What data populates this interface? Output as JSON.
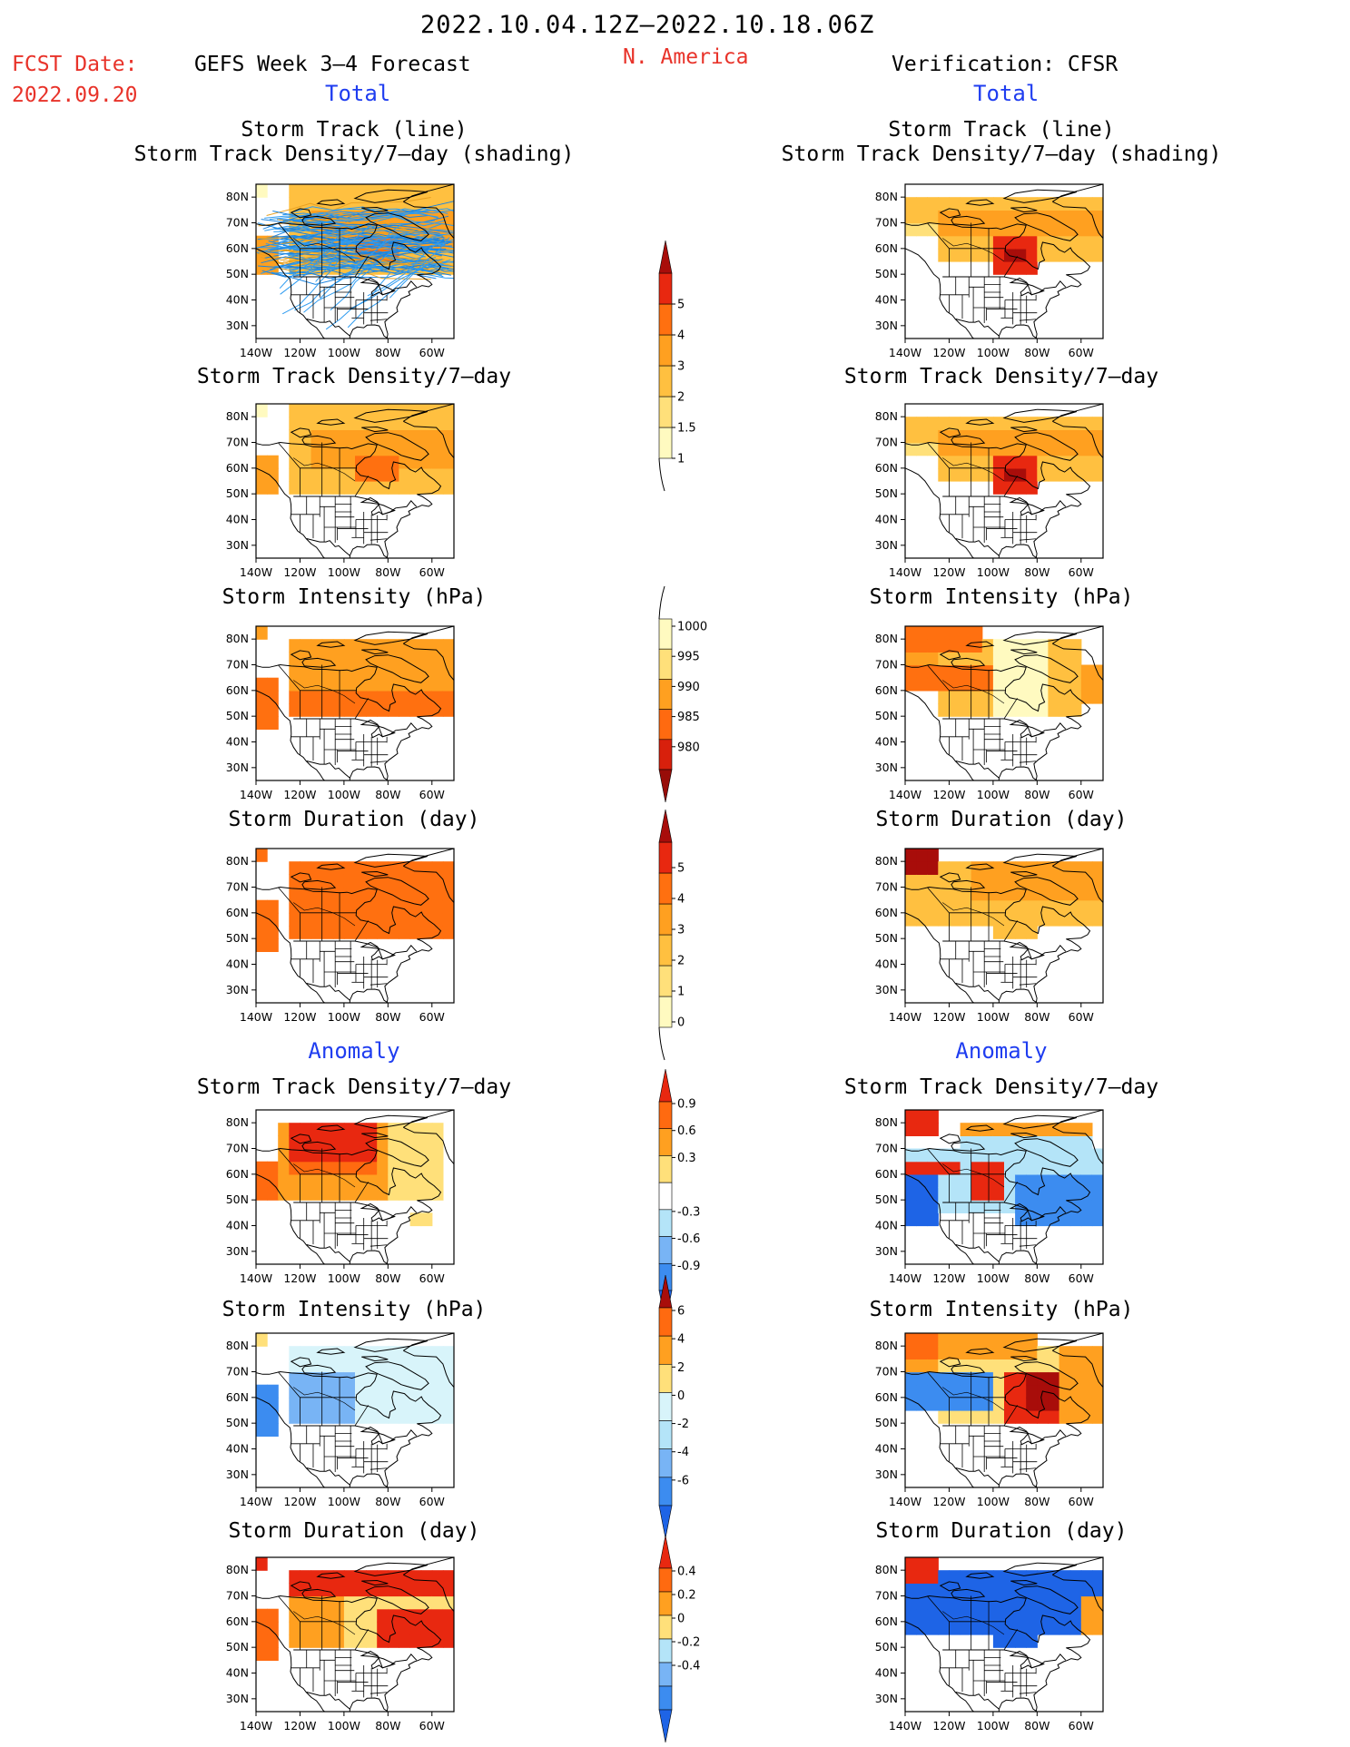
{
  "header": {
    "period": "2022.10.04.12Z—2022.10.18.06Z",
    "fcst_label": "FCST Date:",
    "fcst_date": "2022.09.20",
    "model": "GEFS Week 3–4 Forecast",
    "region": "N. America",
    "verification": "Verification: CFSR"
  },
  "sections": {
    "total": "Total",
    "anomaly": "Anomaly"
  },
  "panel_titles": {
    "track_line": "Storm Track (line)",
    "track_shading": "Storm Track Density/7—day (shading)",
    "density": "Storm Track Density/7—day",
    "intensity": "Storm Intensity (hPa)",
    "duration": "Storm Duration (day)"
  },
  "chart_data": [
    {
      "type": "heatmap",
      "id": "total_density",
      "colorbar": {
        "levels": [
          "1",
          "1.5",
          "2",
          "3",
          "4",
          "5"
        ],
        "colors": [
          "#fffac0",
          "#ffe07a",
          "#ffc040",
          "#ffa020",
          "#ff7010",
          "#e82810",
          "#a80d0a"
        ]
      },
      "lat_ticks": [
        "30N",
        "40N",
        "50N",
        "60N",
        "70N",
        "80N"
      ],
      "lon_ticks": [
        "140W",
        "120W",
        "100W",
        "80W",
        "60W"
      ]
    },
    {
      "type": "heatmap",
      "id": "total_intensity",
      "colorbar": {
        "levels": [
          "1000",
          "995",
          "990",
          "985",
          "980"
        ],
        "colors": [
          "#fffac0",
          "#ffe07a",
          "#ffa020",
          "#ff6a10",
          "#d8200c",
          "#980c08"
        ]
      }
    },
    {
      "type": "heatmap",
      "id": "total_duration",
      "colorbar": {
        "levels": [
          "0",
          "1",
          "2",
          "3",
          "4",
          "5"
        ],
        "colors": [
          "#fffac0",
          "#ffe07a",
          "#ffc040",
          "#ffa020",
          "#ff7010",
          "#e82810",
          "#a80d0a"
        ]
      }
    },
    {
      "type": "heatmap",
      "id": "anom_density",
      "colorbar": {
        "levels": [
          "-0.9",
          "-0.6",
          "-0.3",
          "0.3",
          "0.6",
          "0.9"
        ],
        "colors": [
          "#1e64e6",
          "#3c8cf0",
          "#78b4f5",
          "#b4e4f8",
          "#ffffff",
          "#ffe07a",
          "#ffa020",
          "#ff6a10",
          "#e82810"
        ]
      }
    },
    {
      "type": "heatmap",
      "id": "anom_intensity",
      "colorbar": {
        "levels": [
          "-6",
          "-4",
          "-2",
          "0",
          "2",
          "4",
          "6"
        ],
        "colors": [
          "#1e64e6",
          "#3c8cf0",
          "#78b4f5",
          "#b4e4f8",
          "#d8f4fa",
          "#ffe07a",
          "#ffa020",
          "#ff6a10",
          "#a80d0a"
        ]
      }
    },
    {
      "type": "heatmap",
      "id": "anom_duration",
      "colorbar": {
        "levels": [
          "-0.4",
          "-0.2",
          "0",
          "0.2",
          "0.4"
        ],
        "colors": [
          "#1e64e6",
          "#3c8cf0",
          "#78b4f5",
          "#b4e4f8",
          "#ffe07a",
          "#ffa020",
          "#ff6a10",
          "#e82810"
        ]
      }
    }
  ]
}
